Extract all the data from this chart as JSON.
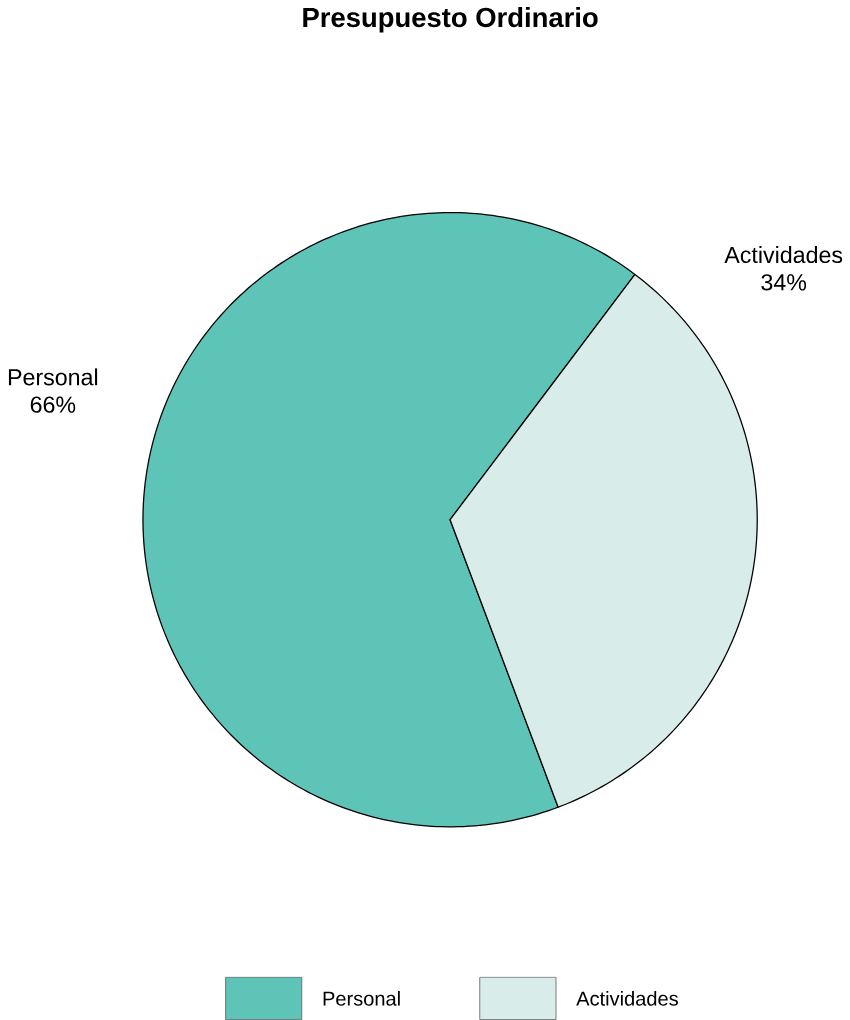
{
  "chart_data": {
    "type": "pie",
    "title": "Presupuesto Ordinario",
    "categories": [
      "Personal",
      "Actividades"
    ],
    "values": [
      66,
      34
    ],
    "value_labels": [
      "66%",
      "34%"
    ],
    "colors": [
      "#5fc4b8",
      "#d8ede9"
    ],
    "legend": "bottom"
  }
}
